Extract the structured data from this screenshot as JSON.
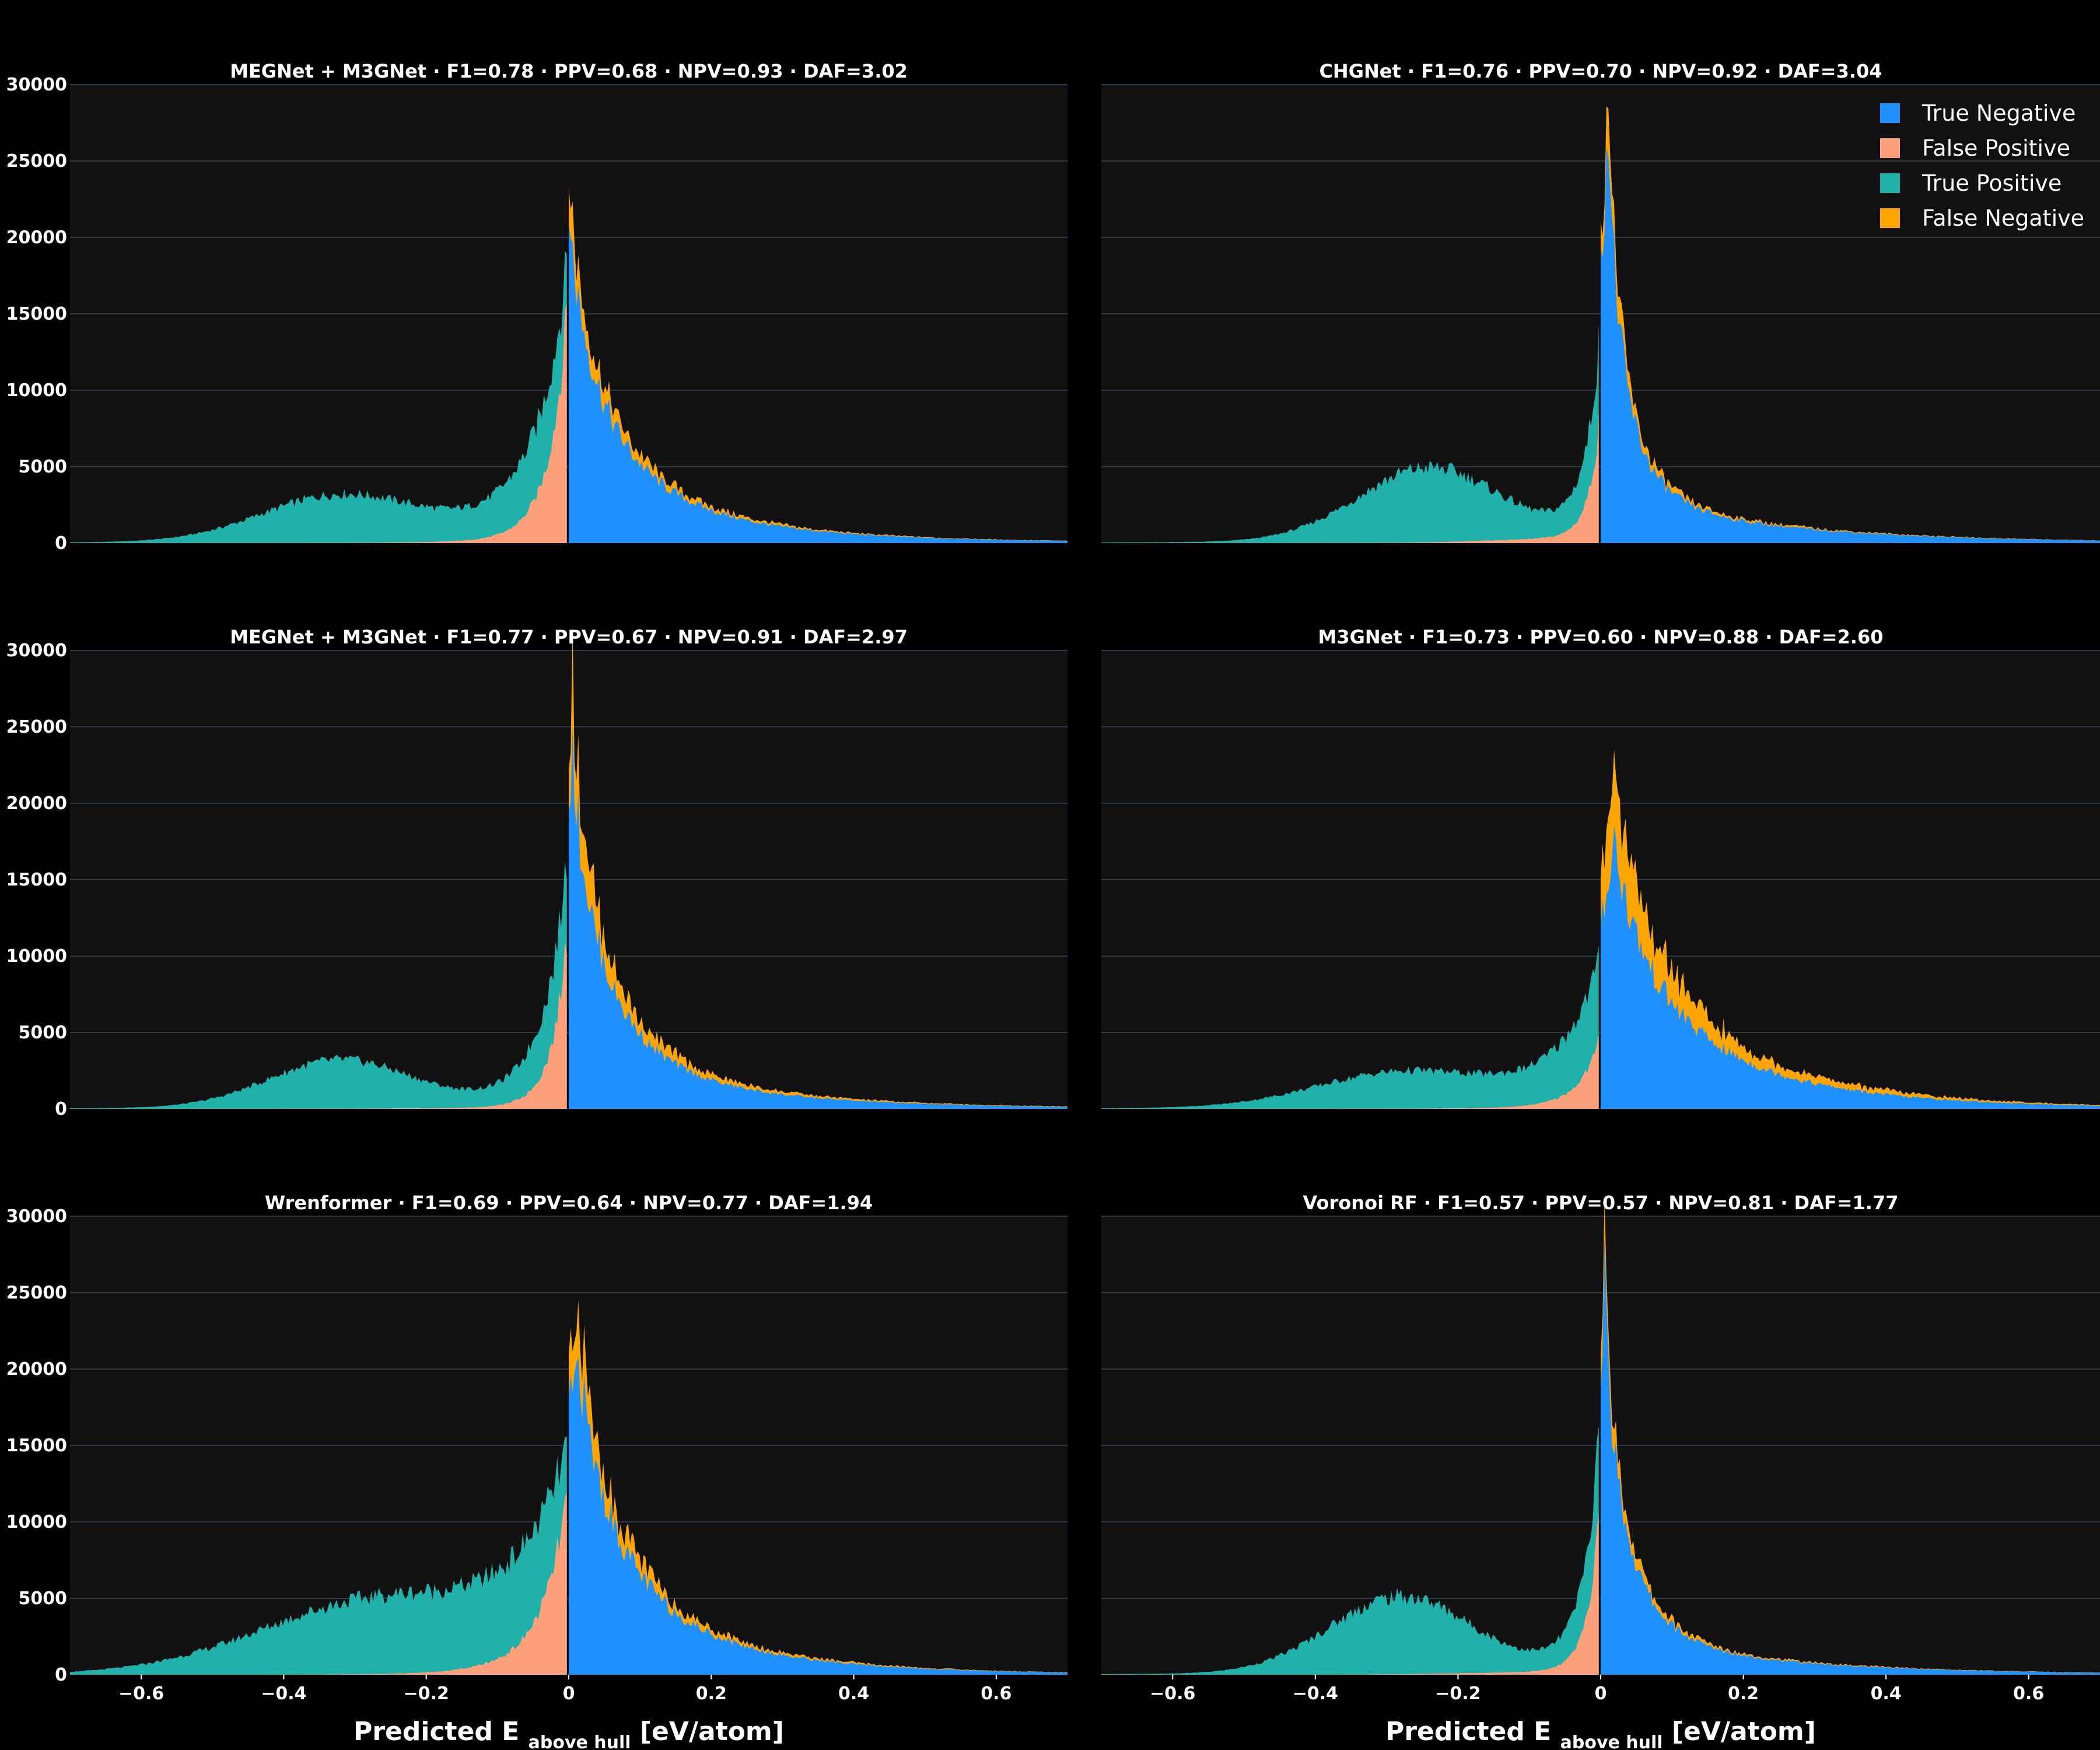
{
  "chart_data": {
    "type": "area",
    "figure": "2x3 grid of stacked histograms of predicted hull distance",
    "xlim": [
      -0.7,
      0.7
    ],
    "xticks": [
      -0.6,
      -0.4,
      -0.2,
      0,
      0.2,
      0.4,
      0.6
    ],
    "xtick_labels": [
      "−0.6",
      "−0.4",
      "−0.2",
      "0",
      "0.2",
      "0.4",
      "0.6"
    ],
    "xlabel": {
      "main": "Predicted E",
      "sub": "above hull",
      "unit": "[eV/atom]"
    },
    "ylim": [
      0,
      30000
    ],
    "yticks": [
      0,
      5000,
      10000,
      15000,
      20000,
      25000,
      30000
    ],
    "ytick_labels": [
      "0",
      "5000",
      "10000",
      "15000",
      "20000",
      "25000",
      "30000"
    ],
    "grid": true,
    "legend": {
      "placement": "top-right of top-right panel",
      "entries": [
        {
          "name": "True Negative",
          "color": "#1E90FF"
        },
        {
          "name": "False Positive",
          "color": "#FFA07A"
        },
        {
          "name": "True Positive",
          "color": "#20B2AA"
        },
        {
          "name": "False Negative",
          "color": "#FFA500"
        }
      ]
    },
    "panels": [
      {
        "title": "MEGNet + M3GNet · F1=0.78 · PPV=0.68 · NPV=0.93 · DAF=3.02",
        "peak": 20000,
        "peak_x": 0,
        "neg_amp": 3000,
        "neg_x": -0.32,
        "neg_w": 0.11,
        "pos_tail": 0.1,
        "fn_frac": 0.12,
        "fp_amp": 0.88,
        "pos_wid": 0.05,
        "neg_wid": 0.045
      },
      {
        "title": "CHGNet · F1=0.76 · PPV=0.70 · NPV=0.92 · DAF=3.04",
        "peak": 26500,
        "peak_x": 0.01,
        "neg_amp": 4800,
        "neg_x": -0.24,
        "neg_w": 0.1,
        "pos_tail": 0.11,
        "fn_frac": 0.1,
        "fp_amp": 0.63,
        "pos_wid": 0.02,
        "neg_wid": 0.018
      },
      {
        "title": "MEGNet + M3GNet · F1=0.77 · PPV=0.67 · NPV=0.91 · DAF=2.97",
        "peak": 22300,
        "peak_x": 0.005,
        "neg_amp": 3100,
        "neg_x": -0.32,
        "neg_w": 0.1,
        "pos_tail": 0.1,
        "fn_frac": 0.2,
        "fp_amp": 0.74,
        "pos_wid": 0.04,
        "neg_wid": 0.03
      },
      {
        "title": "M3GNet · F1=0.73 · PPV=0.60 · NPV=0.88 · DAF=2.60",
        "peak": 15500,
        "peak_x": 0.02,
        "neg_amp": 2200,
        "neg_x": -0.28,
        "neg_w": 0.12,
        "pos_tail": 0.16,
        "fn_frac": 0.3,
        "fp_amp": 0.48,
        "pos_wid": 0.07,
        "neg_wid": 0.05
      },
      {
        "title": "Wrenformer · F1=0.69 · PPV=0.64 · NPV=0.77 · DAF=1.94",
        "peak": 18500,
        "peak_x": 0.015,
        "neg_amp": 4200,
        "neg_x": -0.28,
        "neg_w": 0.16,
        "pos_tail": 0.09,
        "fn_frac": 0.14,
        "fp_amp": 0.83,
        "pos_wid": 0.06,
        "neg_wid": 0.075
      },
      {
        "title": "Voronoi RF · F1=0.57 · PPV=0.57 · NPV=0.81 · DAF=1.77",
        "peak": 24500,
        "peak_x": 0.005,
        "neg_amp": 5000,
        "neg_x": -0.28,
        "neg_w": 0.1,
        "pos_tail": 0.09,
        "fn_frac": 0.1,
        "fp_amp": 0.7,
        "pos_wid": 0.025,
        "neg_wid": 0.02
      }
    ]
  }
}
